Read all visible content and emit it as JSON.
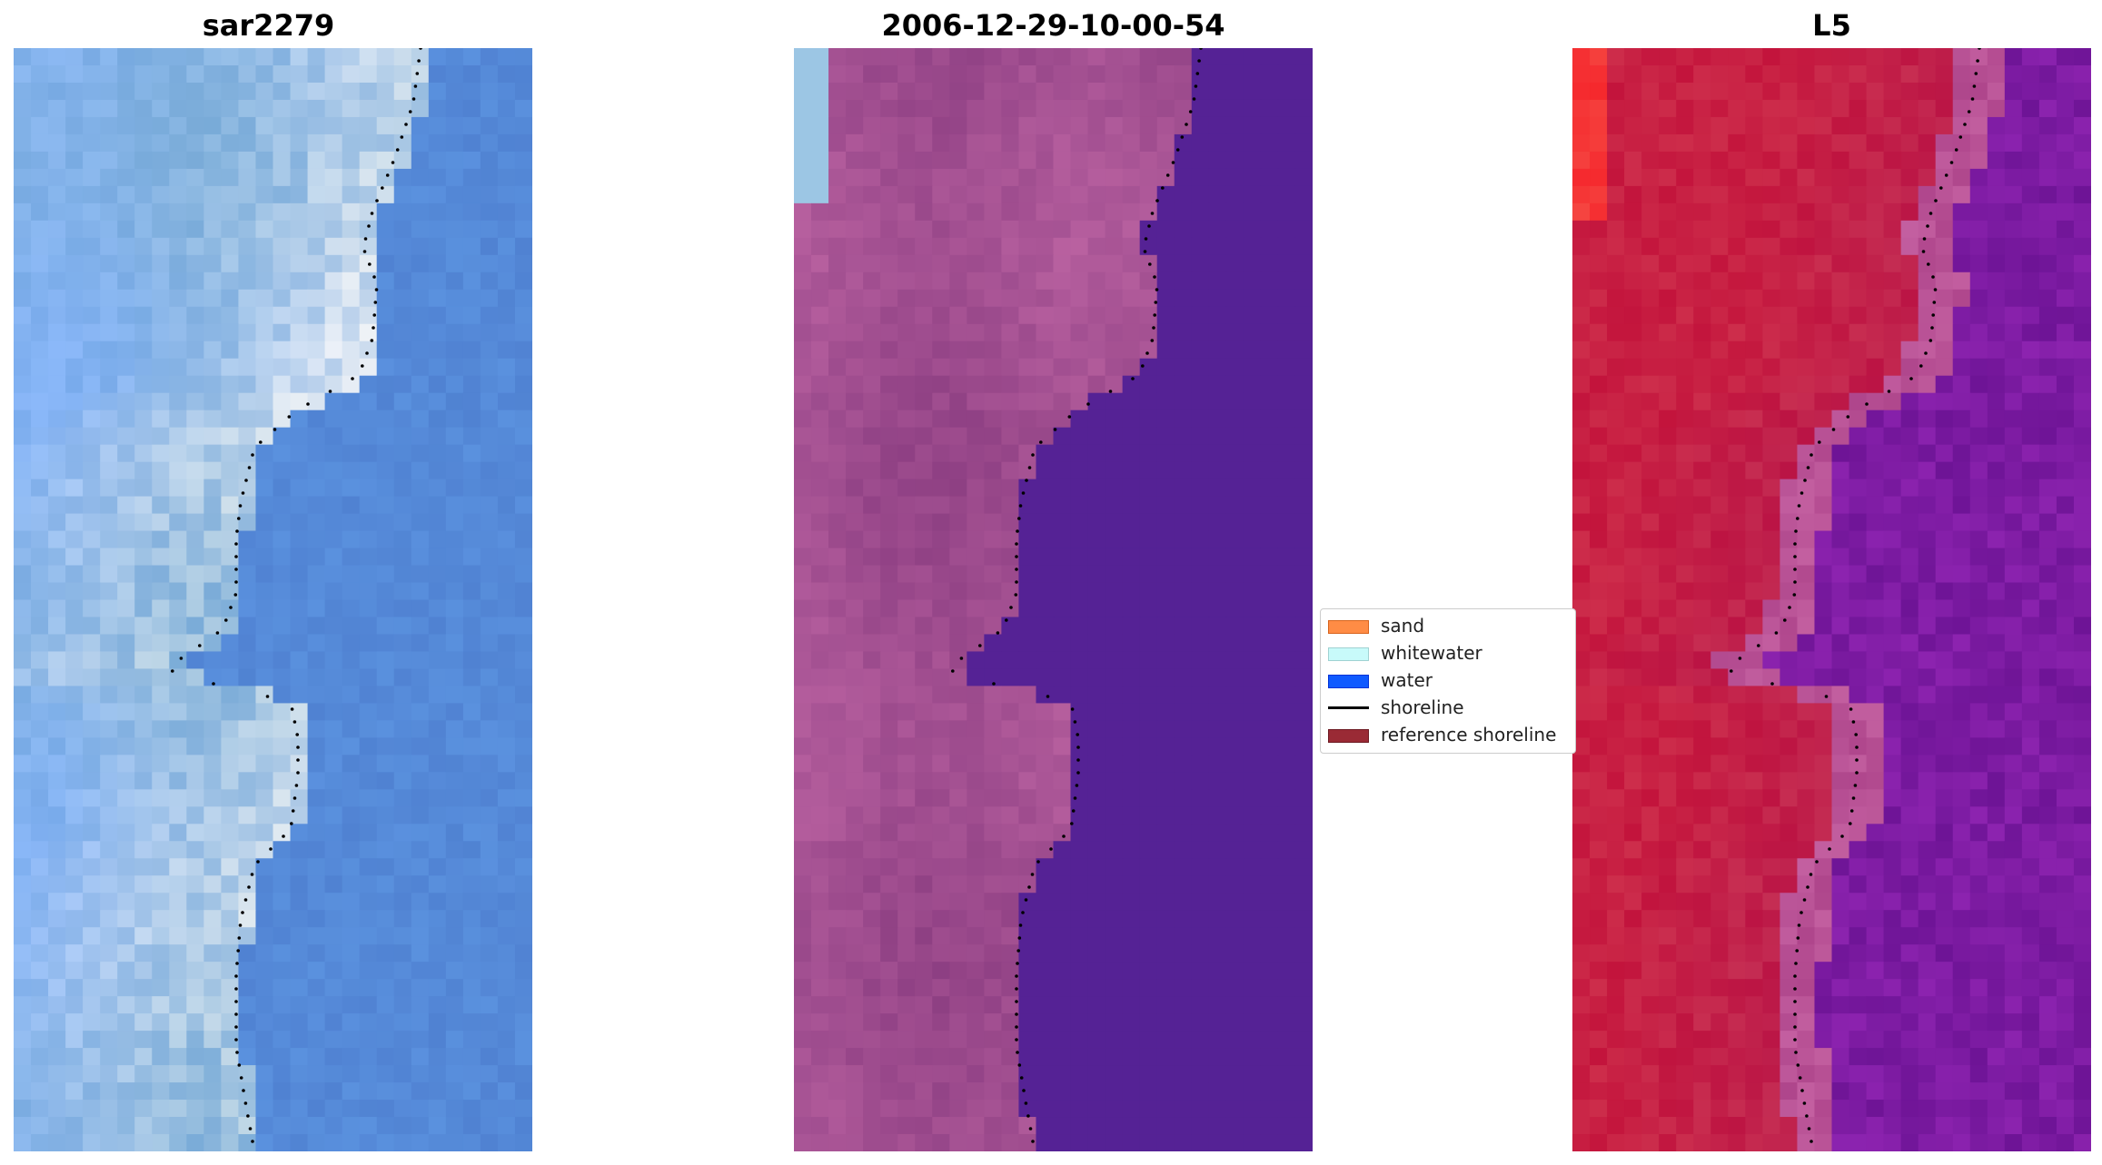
{
  "panels": [
    {
      "title": "sar2279",
      "colormap": "rgb"
    },
    {
      "title": "2006-12-29-10-00-54",
      "colormap": "classified"
    },
    {
      "title": "L5",
      "colormap": "index"
    }
  ],
  "legend": {
    "placement": "center-right",
    "items": [
      {
        "label": "sand",
        "type": "patch",
        "color": "#ff8c45"
      },
      {
        "label": "whitewater",
        "type": "patch",
        "color": "#c8fafa"
      },
      {
        "label": "water",
        "type": "patch",
        "color": "#0f5aff"
      },
      {
        "label": "shoreline",
        "type": "line",
        "color": "#000000"
      },
      {
        "label": "reference shoreline",
        "type": "patch",
        "color": "#9a2a35"
      }
    ]
  },
  "colors": {
    "water_classified": "#552295",
    "land_classified": "#9a4e8f",
    "whitewater_classified": "#9cc6e4",
    "shoreline": "#000000"
  }
}
